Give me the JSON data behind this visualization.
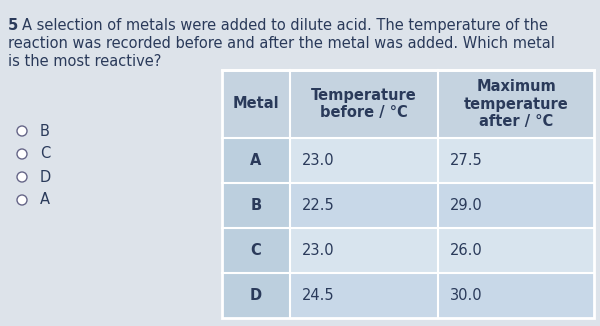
{
  "question_number": "5",
  "question_lines": [
    "A selection of metals were added to dilute acid. The temperature of the",
    "reaction was recorded before and after the metal was added. Which metal",
    "is the most reactive?"
  ],
  "options": [
    "B",
    "C",
    "D",
    "A"
  ],
  "table_headers": [
    "Metal",
    "Temperature\nbefore / °C",
    "Maximum\ntemperature\nafter / °C"
  ],
  "table_rows": [
    [
      "A",
      "23.0",
      "27.5"
    ],
    [
      "B",
      "22.5",
      "29.0"
    ],
    [
      "C",
      "23.0",
      "26.0"
    ],
    [
      "D",
      "24.5",
      "30.0"
    ]
  ],
  "bg_color": "#dde3ea",
  "header_bg": "#c5d3e0",
  "row_bg_light": "#d8e4ee",
  "row_bg_mid": "#c8d8e8",
  "metal_col_bg": "#bccfde",
  "text_color": "#2a3a5a",
  "fig_width": 6.0,
  "fig_height": 3.26,
  "dpi": 100
}
